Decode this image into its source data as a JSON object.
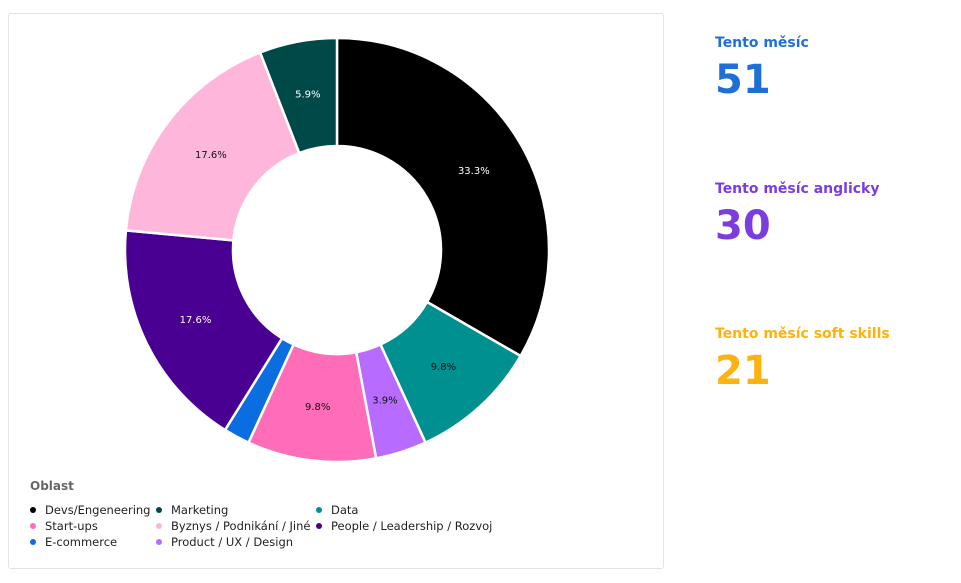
{
  "chart_data": {
    "type": "pie",
    "donut": true,
    "legend_title": "Oblast",
    "legend_placement": "bottom-left",
    "slices": [
      {
        "label": "Devs/Engeneering",
        "value": 33.3,
        "display": "33.3%",
        "color": "#000000",
        "text_color": "#ffffff"
      },
      {
        "label": "Data",
        "value": 9.8,
        "display": "9.8%",
        "color": "#009090",
        "text_color": "#111111"
      },
      {
        "label": "Product / UX / Design",
        "value": 3.9,
        "display": "3.9%",
        "color": "#b86cff",
        "text_color": "#111111"
      },
      {
        "label": "Start-ups",
        "value": 9.8,
        "display": "9.8%",
        "color": "#ff6cb8",
        "text_color": "#111111"
      },
      {
        "label": "E-commerce",
        "value": 2.0,
        "display": "",
        "color": "#0b6ee0",
        "text_color": "#ffffff"
      },
      {
        "label": "People / Leadership / Rozvoj",
        "value": 17.6,
        "display": "17.6%",
        "color": "#490092",
        "text_color": "#ffffff"
      },
      {
        "label": "Byznys / Podnikání / Jiné",
        "value": 17.6,
        "display": "17.6%",
        "color": "#ffb6db",
        "text_color": "#111111"
      },
      {
        "label": "Marketing",
        "value": 5.9,
        "display": "5.9%",
        "color": "#004949",
        "text_color": "#ffffff"
      }
    ],
    "legend_order": [
      "Devs/Engeneering",
      "Marketing",
      "Data",
      "Start-ups",
      "Byznys / Podnikání / Jiné",
      "People / Leadership / Rozvoj",
      "E-commerce",
      "Product / UX / Design"
    ]
  },
  "kpis": [
    {
      "label": "Tento měsíc",
      "value": "51",
      "color": "#1f6fd9"
    },
    {
      "label": "Tento měsíc anglicky",
      "value": "30",
      "color": "#7b3ce0"
    },
    {
      "label": "Tento měsíc soft skills",
      "value": "21",
      "color": "#ffb20f"
    }
  ]
}
